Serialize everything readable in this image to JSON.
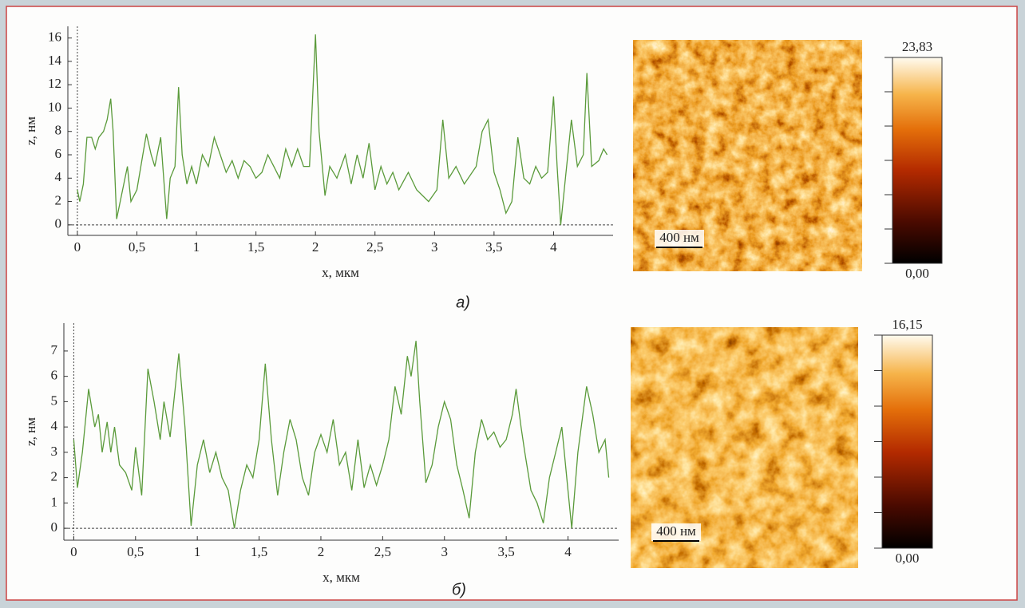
{
  "chart_data": [
    {
      "type": "line",
      "color": "#5a9a3a",
      "x_label": "x, мкм",
      "y_label": "z, нм",
      "caption": "а)",
      "x": [
        0,
        0.02,
        0.05,
        0.08,
        0.12,
        0.15,
        0.18,
        0.22,
        0.25,
        0.28,
        0.3,
        0.33,
        0.38,
        0.42,
        0.45,
        0.5,
        0.55,
        0.58,
        0.62,
        0.65,
        0.7,
        0.75,
        0.78,
        0.82,
        0.85,
        0.88,
        0.92,
        0.96,
        1,
        1.05,
        1.1,
        1.15,
        1.2,
        1.25,
        1.3,
        1.35,
        1.4,
        1.45,
        1.5,
        1.55,
        1.6,
        1.65,
        1.7,
        1.75,
        1.8,
        1.85,
        1.9,
        1.95,
        2.0,
        2.03,
        2.08,
        2.12,
        2.18,
        2.25,
        2.3,
        2.35,
        2.4,
        2.45,
        2.5,
        2.55,
        2.6,
        2.65,
        2.7,
        2.78,
        2.85,
        2.95,
        3.02,
        3.07,
        3.12,
        3.18,
        3.25,
        3.35,
        3.4,
        3.45,
        3.5,
        3.55,
        3.6,
        3.65,
        3.7,
        3.75,
        3.8,
        3.85,
        3.9,
        3.95,
        4.0,
        4.03,
        4.06,
        4.1,
        4.15,
        4.2,
        4.25,
        4.28,
        4.32,
        4.38,
        4.42,
        4.45
      ],
      "values": [
        3,
        2,
        3.5,
        7.5,
        7.5,
        6.5,
        7.5,
        8,
        9,
        10.8,
        8,
        0.5,
        3,
        5,
        2,
        3,
        6,
        7.8,
        6,
        5,
        7.5,
        0.5,
        4,
        5,
        11.8,
        6,
        3.5,
        5,
        3.5,
        6,
        5,
        7.5,
        6,
        4.5,
        5.5,
        4,
        5.5,
        5,
        4,
        4.5,
        6,
        5,
        4,
        6.5,
        5,
        6.5,
        5,
        5,
        16.3,
        8,
        2.5,
        5,
        4,
        6,
        3.5,
        6,
        4,
        7,
        3,
        5,
        3.5,
        4.5,
        3,
        4.5,
        3,
        2,
        3,
        9,
        4,
        5,
        3.5,
        5,
        8,
        9,
        4.5,
        3,
        1,
        2,
        7.5,
        4,
        3.5,
        5,
        4,
        4.5,
        11,
        5,
        0,
        4,
        9,
        5,
        6,
        13,
        5,
        5.5,
        6.5,
        6
      ],
      "xlim": [
        -0.08,
        4.5
      ],
      "ylim": [
        -0.9,
        17
      ],
      "xticks": [
        0,
        {
          "value": 0.5,
          "label": "0,5"
        },
        1,
        {
          "value": 1.5,
          "label": "1,5"
        },
        2,
        {
          "value": 2.5,
          "label": "2,5"
        },
        3,
        {
          "value": 3.5,
          "label": "3,5"
        },
        4
      ],
      "yticks": [
        0,
        2,
        4,
        6,
        8,
        10,
        12,
        14,
        16
      ],
      "scale_bar": "400 нм",
      "colorbar": {
        "lim": [
          0,
          23.83
        ],
        "ticks": [
          {
            "value": 0,
            "label": "0,00"
          },
          {
            "value": 23.83,
            "label": "23,83"
          }
        ]
      }
    },
    {
      "type": "line",
      "color": "#5a9a3a",
      "x_label": "x, мкм",
      "y_label": "z, нм",
      "caption": "б)",
      "x": [
        0,
        0.03,
        0.07,
        0.12,
        0.17,
        0.2,
        0.23,
        0.27,
        0.3,
        0.33,
        0.37,
        0.42,
        0.47,
        0.5,
        0.55,
        0.6,
        0.65,
        0.7,
        0.73,
        0.78,
        0.85,
        0.9,
        0.95,
        1.0,
        1.05,
        1.1,
        1.15,
        1.2,
        1.25,
        1.3,
        1.35,
        1.4,
        1.45,
        1.5,
        1.55,
        1.6,
        1.65,
        1.7,
        1.75,
        1.8,
        1.85,
        1.9,
        1.95,
        2.0,
        2.05,
        2.1,
        2.15,
        2.2,
        2.25,
        2.3,
        2.35,
        2.4,
        2.45,
        2.5,
        2.55,
        2.6,
        2.65,
        2.7,
        2.73,
        2.77,
        2.8,
        2.85,
        2.9,
        2.95,
        3.0,
        3.05,
        3.1,
        3.15,
        3.2,
        3.25,
        3.3,
        3.35,
        3.4,
        3.45,
        3.5,
        3.55,
        3.58,
        3.62,
        3.65,
        3.7,
        3.75,
        3.8,
        3.85,
        3.9,
        3.95,
        4.0,
        4.03,
        4.08,
        4.15,
        4.2,
        4.25,
        4.3,
        4.33
      ],
      "values": [
        3.5,
        1.6,
        3,
        5.5,
        4,
        4.5,
        3,
        4.2,
        3,
        4,
        2.5,
        2.2,
        1.5,
        3.2,
        1.3,
        6.3,
        5,
        3.5,
        5,
        3.6,
        6.9,
        4,
        0.1,
        2.5,
        3.5,
        2.2,
        3,
        2,
        1.5,
        0,
        1.5,
        2.5,
        2,
        3.5,
        6.5,
        3.5,
        1.3,
        3,
        4.3,
        3.5,
        2,
        1.3,
        3,
        3.7,
        3,
        4.3,
        2.5,
        3,
        1.5,
        3.5,
        1.6,
        2.5,
        1.7,
        2.5,
        3.5,
        5.6,
        4.5,
        6.8,
        6,
        7.4,
        5,
        1.8,
        2.5,
        4,
        5,
        4.3,
        2.5,
        1.5,
        0.4,
        3,
        4.3,
        3.5,
        3.8,
        3.2,
        3.5,
        4.5,
        5.5,
        4,
        3,
        1.5,
        1,
        0.2,
        2,
        3,
        4,
        1.5,
        0,
        3,
        5.6,
        4.5,
        3,
        3.5,
        2
      ],
      "xlim": [
        -0.08,
        4.41
      ],
      "ylim": [
        -0.47,
        8.1
      ],
      "xticks": [
        0,
        {
          "value": 0.5,
          "label": "0,5"
        },
        1,
        {
          "value": 1.5,
          "label": "1,5"
        },
        2,
        {
          "value": 2.5,
          "label": "2,5"
        },
        3,
        {
          "value": 3.5,
          "label": "3,5"
        },
        4
      ],
      "yticks": [
        0,
        1,
        2,
        3,
        4,
        5,
        6,
        7
      ],
      "scale_bar": "400 нм",
      "colorbar": {
        "lim": [
          0,
          16.15
        ],
        "ticks": [
          {
            "value": 0,
            "label": "0,00"
          },
          {
            "value": 16.15,
            "label": "16,15"
          }
        ]
      }
    }
  ]
}
